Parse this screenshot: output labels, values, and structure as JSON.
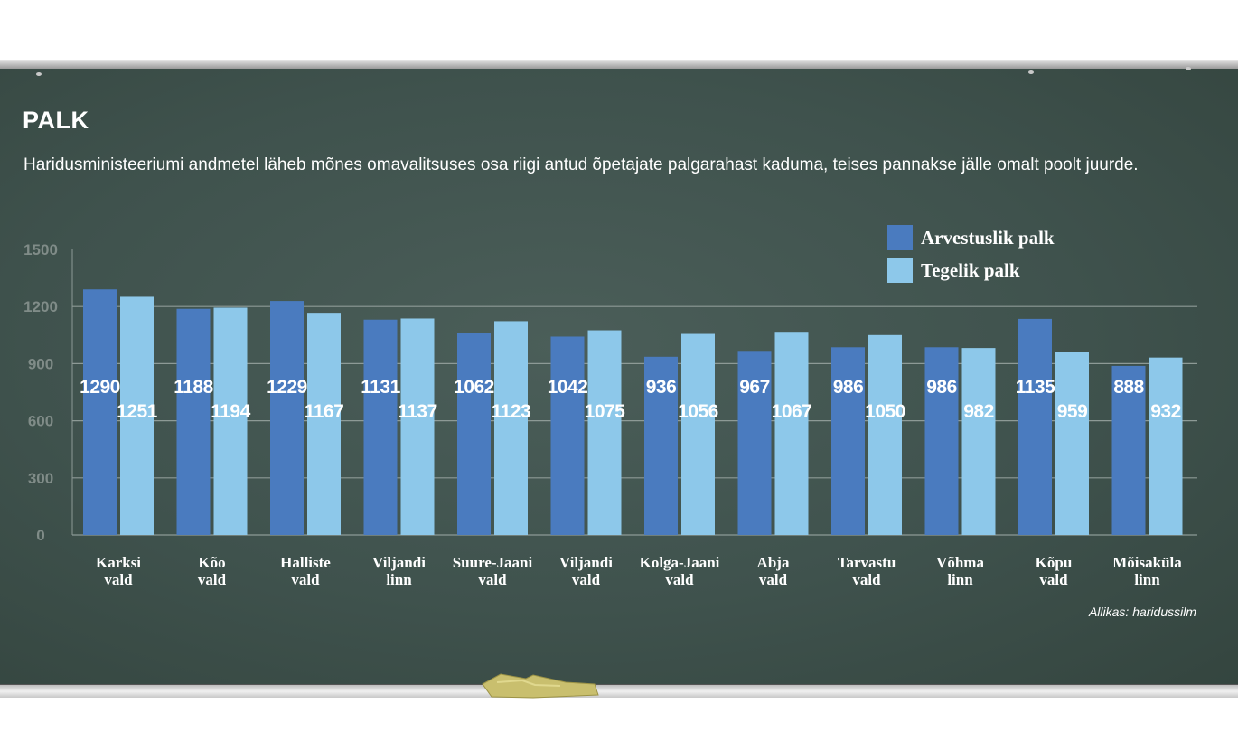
{
  "title": "PALK",
  "subtitle": "Haridusministeeriumi  andmetel läheb mõnes omavalitsuses osa riigi antud õpetajate palgarahast kaduma, teises pannakse jälle omalt poolt juurde.",
  "source": "Allikas: haridussilm",
  "colors": {
    "board": "#3f524d",
    "series_dark": "#4a7bbf",
    "series_light": "#8dc8ea",
    "text": "#ffffff",
    "axis_text": "#808c88",
    "grid": "#8d9a96"
  },
  "chart_data": {
    "type": "bar",
    "categories": [
      [
        "Karksi",
        "vald"
      ],
      [
        "Kõo",
        "vald"
      ],
      [
        "Halliste",
        "vald"
      ],
      [
        "Viljandi",
        "linn"
      ],
      [
        "Suure-Jaani",
        "vald"
      ],
      [
        "Viljandi",
        "vald"
      ],
      [
        "Kolga-Jaani",
        "vald"
      ],
      [
        "Abja",
        "vald"
      ],
      [
        "Tarvastu",
        "vald"
      ],
      [
        "Võhma",
        "linn"
      ],
      [
        "Kõpu",
        "vald"
      ],
      [
        "Mõisaküla",
        "linn"
      ]
    ],
    "series": [
      {
        "name": "Arvestuslik palk",
        "color": "#4a7bbf",
        "values": [
          1290,
          1188,
          1229,
          1131,
          1062,
          1042,
          936,
          967,
          986,
          986,
          1135,
          888
        ]
      },
      {
        "name": "Tegelik palk",
        "color": "#8dc8ea",
        "values": [
          1251,
          1194,
          1167,
          1137,
          1123,
          1075,
          1056,
          1067,
          1050,
          982,
          959,
          932
        ]
      }
    ],
    "yticks": [
      0,
      300,
      600,
      900,
      1200,
      1500
    ],
    "ylim": [
      0,
      1500
    ],
    "grid": true,
    "legend_position": "top-right",
    "xlabel": "",
    "ylabel": ""
  }
}
